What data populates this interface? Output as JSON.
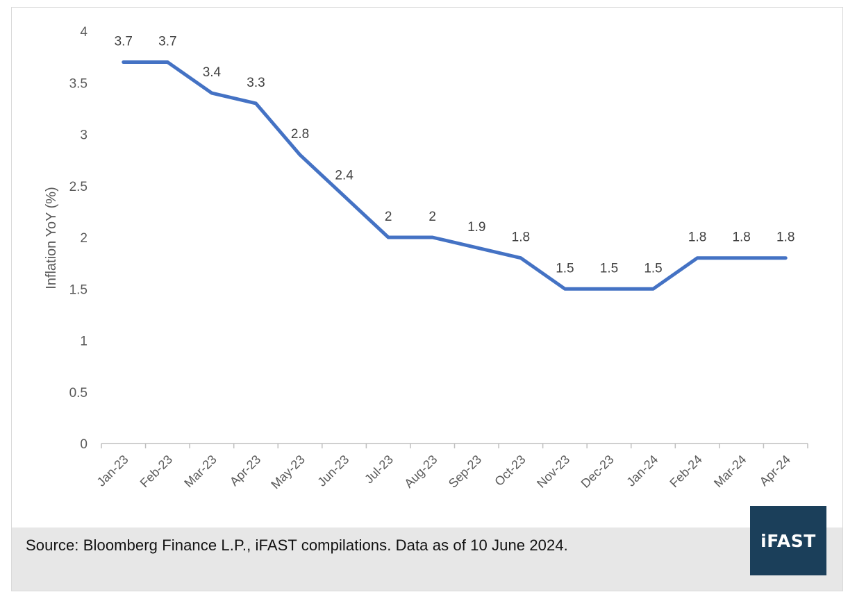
{
  "chart_data": {
    "type": "line",
    "title": "",
    "xlabel": "",
    "ylabel": "Inflation YoY (%)",
    "categories": [
      "Jan-23",
      "Feb-23",
      "Mar-23",
      "Apr-23",
      "May-23",
      "Jun-23",
      "Jul-23",
      "Aug-23",
      "Sep-23",
      "Oct-23",
      "Nov-23",
      "Dec-23",
      "Jan-24",
      "Feb-24",
      "Mar-24",
      "Apr-24"
    ],
    "series": [
      {
        "values": [
          3.7,
          3.7,
          3.4,
          3.3,
          2.8,
          2.4,
          2,
          2,
          1.9,
          1.8,
          1.5,
          1.5,
          1.5,
          1.8,
          1.8,
          1.8
        ]
      }
    ],
    "ylim": [
      0,
      4
    ],
    "yticks": [
      "0",
      "0.5",
      "1",
      "1.5",
      "2",
      "2.5",
      "3",
      "3.5",
      "4"
    ],
    "grid": false,
    "legend": "none",
    "line_color": "#4472c4",
    "data_labels": true
  },
  "footer": {
    "source": "Source: Bloomberg Finance L.P., iFAST compilations. Data as of 10 June 2024."
  },
  "logo": {
    "text": "iFAST",
    "background": "#1b3f5a"
  }
}
